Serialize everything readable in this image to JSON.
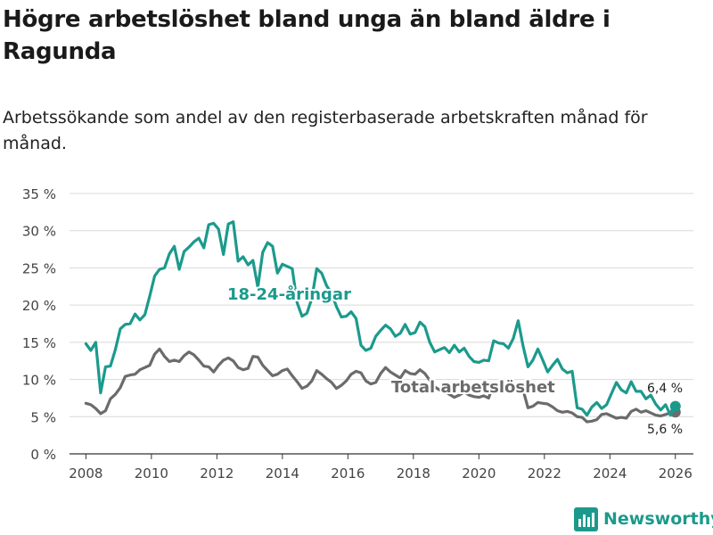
{
  "title": "Högre arbetslöshet bland unga än bland äldre i Ragunda",
  "subtitle": "Arbetssökande som andel av den registerbaserade arbetskraften månad för månad.",
  "brand": {
    "name": "Newsworthy",
    "icon": "bar-chart-logo-icon",
    "color": "#1b9a8c"
  },
  "chart_data": {
    "type": "line",
    "title": "Högre arbetslöshet bland unga än bland äldre i Ragunda",
    "xlabel": "",
    "ylabel": "",
    "xlim": [
      2007.5,
      2026.55
    ],
    "ylim": [
      0,
      35
    ],
    "grid": true,
    "x_ticks": [
      2008,
      2010,
      2012,
      2014,
      2016,
      2018,
      2020,
      2022,
      2024,
      2026
    ],
    "x_tick_labels": [
      "2008",
      "2010",
      "2012",
      "2014",
      "2016",
      "2018",
      "2020",
      "2022",
      "2024",
      "2026"
    ],
    "y_ticks": [
      0,
      5,
      10,
      15,
      20,
      25,
      30,
      35
    ],
    "y_tick_labels": [
      "0 %",
      "5 %",
      "10 %",
      "15 %",
      "20 %",
      "25 %",
      "30 %",
      "35 %"
    ],
    "series": [
      {
        "name": "18-24-åringar",
        "label": "18-24-åringar",
        "color": "#1b9a8c",
        "end_label": "6,4 %",
        "x": [
          2008.0,
          2008.15,
          2008.3,
          2008.45,
          2008.6,
          2008.75,
          2008.9,
          2009.05,
          2009.2,
          2009.35,
          2009.5,
          2009.65,
          2009.8,
          2009.95,
          2010.1,
          2010.25,
          2010.4,
          2010.55,
          2010.7,
          2010.85,
          2011.0,
          2011.15,
          2011.3,
          2011.45,
          2011.6,
          2011.75,
          2011.9,
          2012.05,
          2012.2,
          2012.35,
          2012.5,
          2012.65,
          2012.8,
          2012.95,
          2013.1,
          2013.25,
          2013.4,
          2013.55,
          2013.7,
          2013.85,
          2014.0,
          2014.15,
          2014.3,
          2014.45,
          2014.6,
          2014.75,
          2014.9,
          2015.05,
          2015.2,
          2015.35,
          2015.5,
          2015.65,
          2015.8,
          2015.95,
          2016.1,
          2016.25,
          2016.4,
          2016.55,
          2016.7,
          2016.85,
          2017.0,
          2017.15,
          2017.3,
          2017.45,
          2017.6,
          2017.75,
          2017.9,
          2018.05,
          2018.2,
          2018.35,
          2018.5,
          2018.65,
          2018.8,
          2018.95,
          2019.1,
          2019.25,
          2019.4,
          2019.55,
          2019.7,
          2019.85,
          2020.0,
          2020.15,
          2020.3,
          2020.45,
          2020.6,
          2020.75,
          2020.9,
          2021.05,
          2021.2,
          2021.35,
          2021.5,
          2021.65,
          2021.8,
          2021.95,
          2022.1,
          2022.25,
          2022.4,
          2022.55,
          2022.7,
          2022.85,
          2023.0,
          2023.15,
          2023.3,
          2023.45,
          2023.6,
          2023.75,
          2023.9,
          2024.05,
          2024.2,
          2024.35,
          2024.5,
          2024.65,
          2024.8,
          2024.95,
          2025.1,
          2025.25,
          2025.4,
          2025.55,
          2025.7,
          2025.85,
          2026.0
        ],
        "values": [
          14.8,
          13.9,
          15.0,
          8.2,
          11.7,
          11.8,
          14.0,
          16.8,
          17.4,
          17.5,
          18.8,
          18.0,
          18.7,
          21.2,
          23.9,
          24.8,
          25.0,
          26.9,
          27.9,
          24.8,
          27.2,
          27.8,
          28.5,
          29.0,
          27.7,
          30.8,
          31.0,
          30.2,
          26.8,
          30.9,
          31.2,
          25.9,
          26.5,
          25.4,
          26.0,
          22.4,
          27.1,
          28.4,
          27.9,
          24.3,
          25.5,
          25.2,
          24.9,
          20.3,
          18.5,
          18.9,
          20.9,
          24.9,
          24.3,
          22.6,
          21.6,
          19.8,
          18.4,
          18.5,
          19.1,
          18.2,
          14.6,
          13.9,
          14.2,
          15.8,
          16.6,
          17.3,
          16.8,
          15.8,
          16.2,
          17.4,
          16.1,
          16.3,
          17.7,
          17.1,
          15.0,
          13.7,
          14.0,
          14.3,
          13.6,
          14.6,
          13.7,
          14.2,
          13.1,
          12.4,
          12.3,
          12.6,
          12.5,
          15.2,
          14.9,
          14.8,
          14.2,
          15.5,
          17.9,
          14.5,
          11.7,
          12.6,
          14.1,
          12.6,
          11.0,
          11.9,
          12.7,
          11.4,
          10.9,
          11.1,
          6.2,
          6.0,
          5.2,
          6.3,
          6.9,
          6.1,
          6.6,
          8.1,
          9.6,
          8.6,
          8.2,
          9.7,
          8.4,
          8.4,
          7.4,
          7.9,
          6.7,
          5.9,
          6.6,
          5.2,
          6.4
        ]
      },
      {
        "name": "Total arbetslöshet",
        "label": "Total arbetslöshet",
        "color": "#6b6b6b",
        "end_label": "5,6 %",
        "x": [
          2008.0,
          2008.15,
          2008.3,
          2008.45,
          2008.6,
          2008.75,
          2008.9,
          2009.05,
          2009.2,
          2009.35,
          2009.5,
          2009.65,
          2009.8,
          2009.95,
          2010.1,
          2010.25,
          2010.4,
          2010.55,
          2010.7,
          2010.85,
          2011.0,
          2011.15,
          2011.3,
          2011.45,
          2011.6,
          2011.75,
          2011.9,
          2012.05,
          2012.2,
          2012.35,
          2012.5,
          2012.65,
          2012.8,
          2012.95,
          2013.1,
          2013.25,
          2013.4,
          2013.55,
          2013.7,
          2013.85,
          2014.0,
          2014.15,
          2014.3,
          2014.45,
          2014.6,
          2014.75,
          2014.9,
          2015.05,
          2015.2,
          2015.35,
          2015.5,
          2015.65,
          2015.8,
          2015.95,
          2016.1,
          2016.25,
          2016.4,
          2016.55,
          2016.7,
          2016.85,
          2017.0,
          2017.15,
          2017.3,
          2017.45,
          2017.6,
          2017.75,
          2017.9,
          2018.05,
          2018.2,
          2018.35,
          2018.5,
          2018.65,
          2018.8,
          2018.95,
          2019.1,
          2019.25,
          2019.4,
          2019.55,
          2019.7,
          2019.85,
          2020.0,
          2020.15,
          2020.3,
          2020.45,
          2020.6,
          2020.75,
          2020.9,
          2021.05,
          2021.2,
          2021.35,
          2021.5,
          2021.65,
          2021.8,
          2021.95,
          2022.1,
          2022.25,
          2022.4,
          2022.55,
          2022.7,
          2022.85,
          2023.0,
          2023.15,
          2023.3,
          2023.45,
          2023.6,
          2023.75,
          2023.9,
          2024.05,
          2024.2,
          2024.35,
          2024.5,
          2024.65,
          2024.8,
          2024.95,
          2025.1,
          2025.25,
          2025.4,
          2025.55,
          2025.7,
          2025.85,
          2026.0
        ],
        "values": [
          6.8,
          6.6,
          6.1,
          5.4,
          5.8,
          7.4,
          8.0,
          8.9,
          10.4,
          10.6,
          10.7,
          11.3,
          11.6,
          11.9,
          13.4,
          14.1,
          13.1,
          12.4,
          12.6,
          12.4,
          13.2,
          13.7,
          13.3,
          12.6,
          11.8,
          11.7,
          11.0,
          11.9,
          12.6,
          12.9,
          12.5,
          11.6,
          11.3,
          11.5,
          13.1,
          13.0,
          11.9,
          11.2,
          10.5,
          10.7,
          11.2,
          11.4,
          10.5,
          9.7,
          8.8,
          9.1,
          9.8,
          11.2,
          10.7,
          10.1,
          9.6,
          8.8,
          9.2,
          9.8,
          10.7,
          11.1,
          10.9,
          9.8,
          9.4,
          9.6,
          10.8,
          11.6,
          11.0,
          10.6,
          10.2,
          11.2,
          10.8,
          10.7,
          11.3,
          10.8,
          9.9,
          9.0,
          8.6,
          8.5,
          8.0,
          7.6,
          7.9,
          8.3,
          7.9,
          7.7,
          7.6,
          7.8,
          7.5,
          9.5,
          8.9,
          8.4,
          8.7,
          9.2,
          8.9,
          8.6,
          6.2,
          6.4,
          6.9,
          6.8,
          6.7,
          6.3,
          5.8,
          5.6,
          5.7,
          5.5,
          5.0,
          4.9,
          4.3,
          4.4,
          4.6,
          5.3,
          5.4,
          5.1,
          4.8,
          4.9,
          4.8,
          5.7,
          6.0,
          5.6,
          5.8,
          5.5,
          5.2,
          5.1,
          5.3,
          5.5,
          5.6
        ]
      }
    ]
  }
}
